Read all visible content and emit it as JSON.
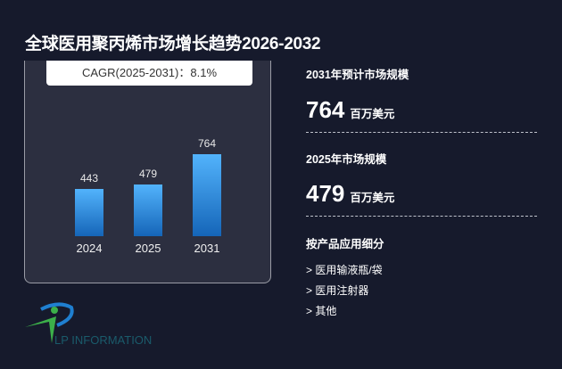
{
  "title": "全球医用聚丙烯市场增长趋势2026-2032",
  "cagr": "CAGR(2025-2031)：8.1%",
  "chart_data": {
    "type": "bar",
    "categories": [
      "2024",
      "2025",
      "2031"
    ],
    "values": [
      443,
      479,
      764
    ],
    "title": "全球医用聚丙烯市场增长趋势2026-2032",
    "ylim": [
      0,
      800
    ]
  },
  "right": {
    "forecast_label": "2031年预计市场规模",
    "forecast_value": "764",
    "forecast_unit": "百万美元",
    "current_label": "2025年市场规模",
    "current_value": "479",
    "current_unit": "百万美元",
    "segment_label": "按产品应用细分",
    "segments": [
      "> 医用输液瓶/袋",
      "> 医用注射器",
      "> 其他"
    ]
  },
  "logo": {
    "text": "LP INFORMATION"
  },
  "colors": {
    "bg": "#161a2c",
    "card": "#2c2f40",
    "bar_top": "#52b3fc",
    "bar_bottom": "#1565b8"
  }
}
